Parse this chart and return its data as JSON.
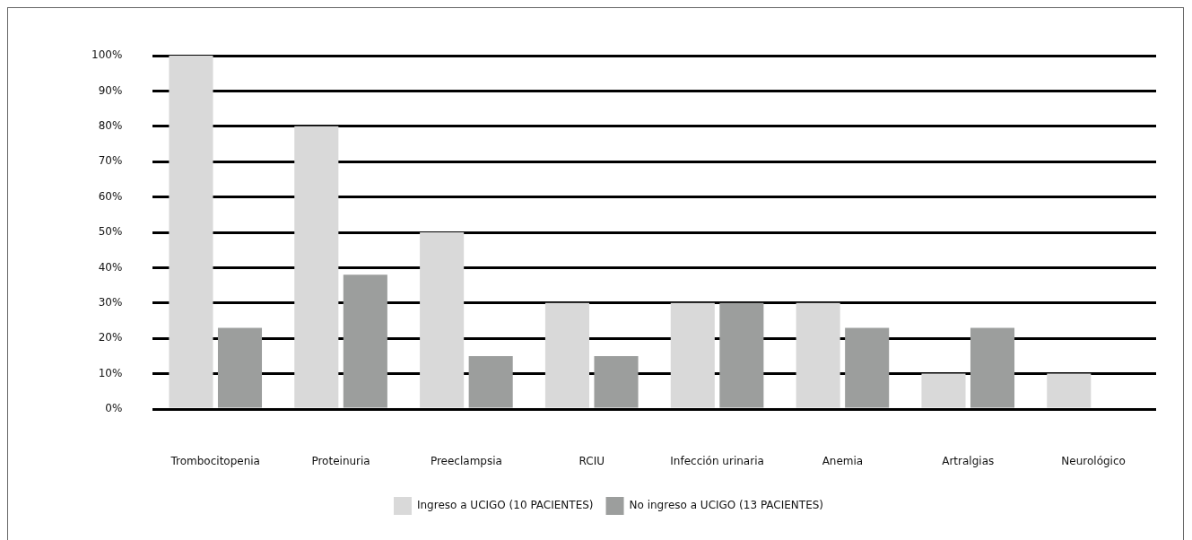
{
  "chart_data": {
    "type": "bar",
    "categories": [
      "Trombocitopenia",
      "Proteinuria",
      "Preeclampsia",
      "RCIU",
      "Infección urinaria",
      "Anemia",
      "Artralgias",
      "Neurológico"
    ],
    "series": [
      {
        "name": "Ingreso a UCIGO (10 PACIENTES)",
        "color": "#d9d9d9",
        "values": [
          100,
          80,
          50,
          30,
          30,
          30,
          10,
          10
        ]
      },
      {
        "name": "No ingreso a UCIGO (13 PACIENTES)",
        "color": "#9c9e9d",
        "values": [
          23,
          38,
          15,
          15,
          30,
          23,
          23,
          0
        ]
      }
    ],
    "ylim": [
      0,
      100
    ],
    "yticks": [
      {
        "value": 0,
        "label": "0%"
      },
      {
        "value": 10,
        "label": "10%"
      },
      {
        "value": 20,
        "label": "20%"
      },
      {
        "value": 30,
        "label": "30%"
      },
      {
        "value": 40,
        "label": "40%"
      },
      {
        "value": 50,
        "label": "50%"
      },
      {
        "value": 60,
        "label": "60%"
      },
      {
        "value": 70,
        "label": "70%"
      },
      {
        "value": 80,
        "label": "80%"
      },
      {
        "value": 90,
        "label": "90%"
      },
      {
        "value": 100,
        "label": "100%"
      }
    ],
    "grid": "y",
    "legend": "bottom"
  }
}
